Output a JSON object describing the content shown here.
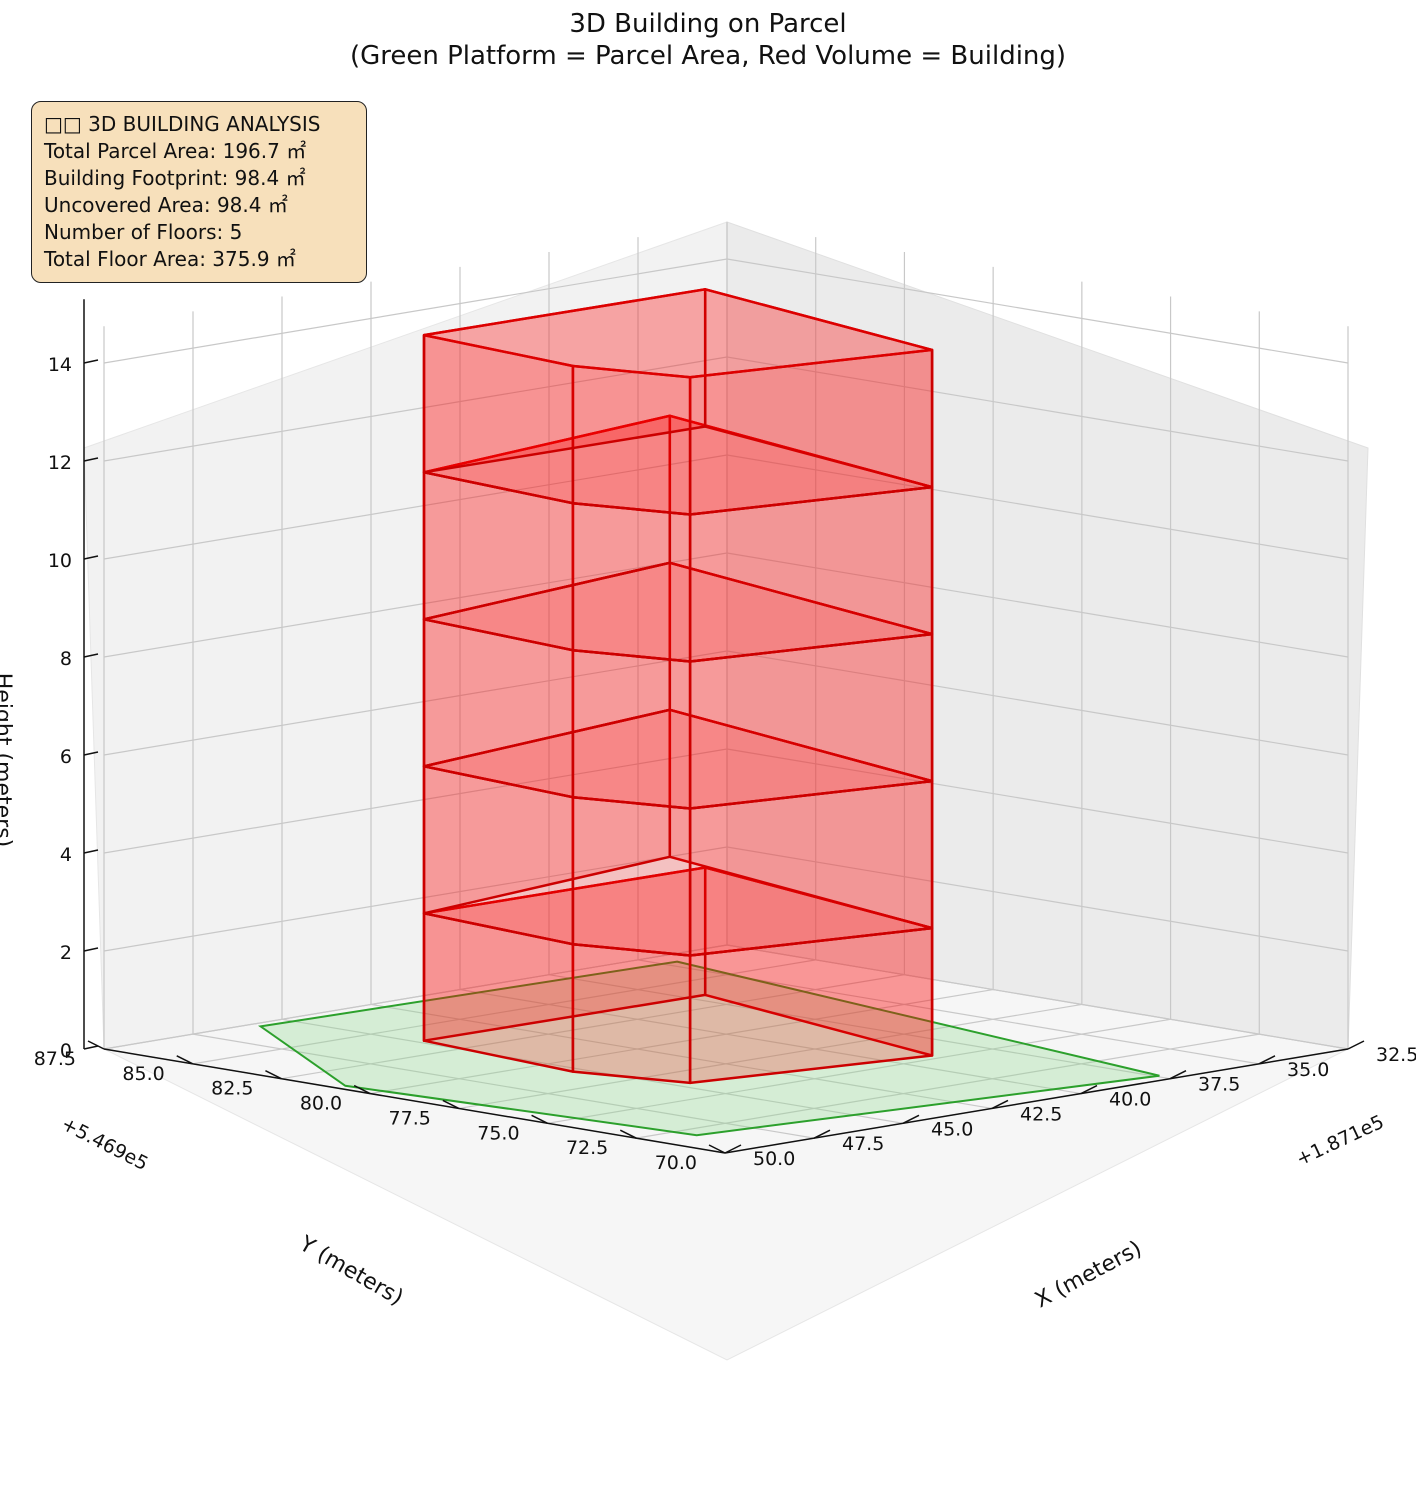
{
  "title_line1": "3D Building on Parcel",
  "title_line2": "(Green Platform = Parcel Area, Red Volume = Building)",
  "info": {
    "heading": "□□ 3D BUILDING ANALYSIS",
    "lines": [
      "Total Parcel Area: 196.7 ㎡",
      "Building Footprint: 98.4 ㎡",
      "Uncovered Area: 98.4 ㎡",
      "Number of Floors: 5",
      "Total Floor Area: 375.9 ㎡"
    ]
  },
  "chart_data": {
    "type": "3d-polygon",
    "xlabel": "X (meters)",
    "ylabel": "Y (meters)",
    "zlabel": "Height (meters)",
    "x_offset_label": "+1.871e5",
    "y_offset_label": "+5.469e5",
    "x_ticks": [
      "32.5",
      "35.0",
      "37.5",
      "40.0",
      "42.5",
      "45.0",
      "47.5",
      "50.0"
    ],
    "y_ticks": [
      "70.0",
      "72.5",
      "75.0",
      "77.5",
      "80.0",
      "82.5",
      "85.0",
      "87.5"
    ],
    "z_ticks": [
      "0",
      "2",
      "4",
      "6",
      "8",
      "10",
      "12",
      "14"
    ],
    "x_range": [
      32.5,
      50.0
    ],
    "y_range": [
      70.0,
      87.5
    ],
    "z_range": [
      0,
      15
    ],
    "parcel_color": "#8fd98f",
    "parcel_edge_color": "#2ca02c",
    "building_color": "#ff0000",
    "floors": 5
  }
}
